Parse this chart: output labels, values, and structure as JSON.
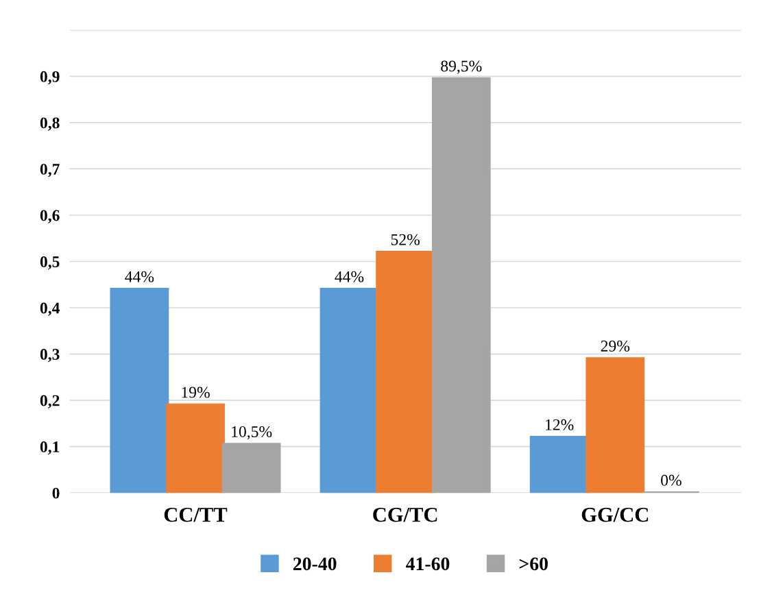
{
  "chart_data": {
    "type": "bar",
    "categories": [
      "CC/TT",
      "CG/TC",
      "GG/CC"
    ],
    "series": [
      {
        "name": "20-40",
        "color": "#5b9bd5",
        "values": [
          0.44,
          0.44,
          0.12
        ],
        "value_labels": [
          "44%",
          "44%",
          "12%"
        ]
      },
      {
        "name": "41-60",
        "color": "#ed7d31",
        "values": [
          0.19,
          0.52,
          0.29
        ],
        "value_labels": [
          "19%",
          "52%",
          "29%"
        ]
      },
      {
        "name": ">60",
        "color": "#a5a5a5",
        "values": [
          0.105,
          0.895,
          0
        ],
        "value_labels": [
          "10,5%",
          "89,5%",
          "0%"
        ]
      }
    ],
    "ylim": [
      0,
      1
    ],
    "yticks": [
      0,
      {
        "value": 0.1,
        "label": "0,1"
      },
      {
        "value": 0.2,
        "label": "0,2"
      },
      {
        "value": 0.3,
        "label": "0,3"
      },
      {
        "value": 0.4,
        "label": "0,4"
      },
      {
        "value": 0.5,
        "label": "0,5"
      },
      {
        "value": 0.6,
        "label": "0,6"
      },
      {
        "value": 0.7,
        "label": "0,7"
      },
      {
        "value": 0.8,
        "label": "0,8"
      },
      {
        "value": 0.9,
        "label": "0,9"
      }
    ],
    "grid": "y",
    "legend": "bottom"
  }
}
